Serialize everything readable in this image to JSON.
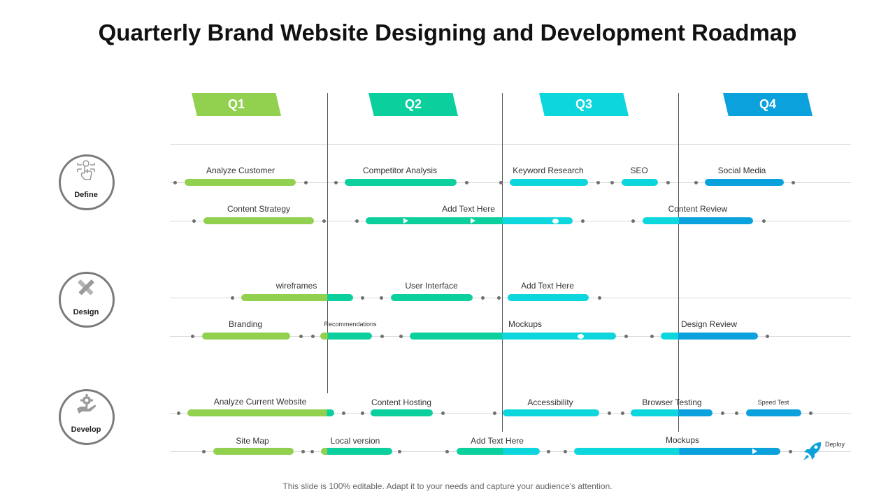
{
  "title": "Quarterly Brand Website Designing and Development Roadmap",
  "quarters": [
    {
      "label": "Q1",
      "color": "#92d050"
    },
    {
      "label": "Q2",
      "color": "#0ccf9e"
    },
    {
      "label": "Q3",
      "color": "#0dd6dc"
    },
    {
      "label": "Q4",
      "color": "#0aa1dd"
    }
  ],
  "stages": [
    {
      "name": "Define",
      "icon": "touch-circuit-icon"
    },
    {
      "name": "Design",
      "icon": "pencil-ruler-icon"
    },
    {
      "name": "Develop",
      "icon": "gear-hand-icon"
    }
  ],
  "tasks": {
    "analyze_customer": "Analyze  Customer",
    "competitor_analysis": "Competitor Analysis",
    "keyword_research": "Keyword Research",
    "seo": "SEO",
    "social_media": "Social Media",
    "content_strategy": "Content Strategy",
    "add_text_1": "Add Text Here",
    "content_review": "Content Review",
    "wireframes": "wireframes",
    "user_interface": "User Interface",
    "add_text_2": "Add Text Here",
    "branding": "Branding",
    "recommendations": "Recommendations",
    "mockups_1": "Mockups",
    "design_review": "Design Review",
    "analyze_current_website": "Analyze  Current Website",
    "content_hosting": "Content Hosting",
    "accessibility": "Accessibility",
    "browser_testing": "Browser Testing",
    "speed_test": "Speed Test",
    "site_map": "Site Map",
    "local_version": "Local version",
    "add_text_3": "Add Text Here",
    "mockups_2": "Mockups"
  },
  "deploy": {
    "label": "Deploy",
    "icon": "rocket-icon"
  },
  "footer": "This slide is 100% editable. Adapt it to your needs and capture your audience's attention."
}
